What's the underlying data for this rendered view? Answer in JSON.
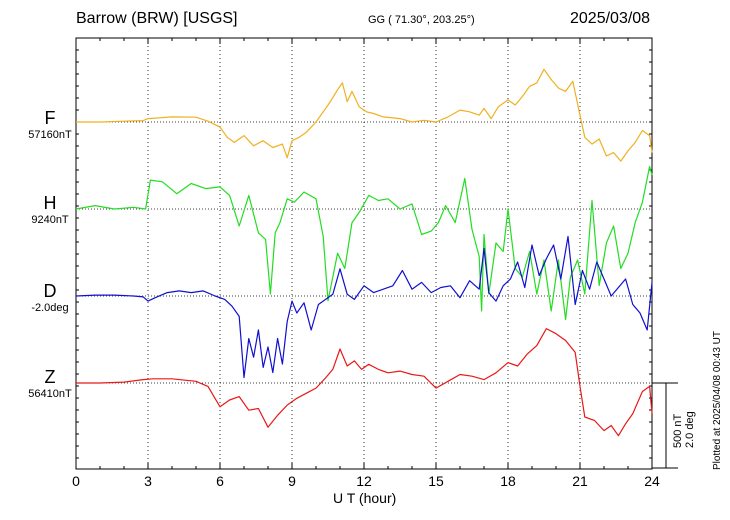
{
  "header": {
    "station": "Barrow (BRW)  [USGS]",
    "coords": "GG ( 71.30°, 203.25°)",
    "date": "2025/03/08"
  },
  "xaxis": {
    "label": "U T (hour)",
    "ticks": [
      "0",
      "3",
      "6",
      "9",
      "12",
      "15",
      "18",
      "21",
      "24"
    ]
  },
  "scale": {
    "nt": "500 nT",
    "deg": "2.0 deg"
  },
  "plotted_note": "Plotted at 2025/04/08 00:43 UT",
  "colors": {
    "F": "#f0b020",
    "H": "#22dd22",
    "D": "#1010d0",
    "Z": "#e81818"
  },
  "components": [
    {
      "letter": "F",
      "baseline": "57160nT"
    },
    {
      "letter": "H",
      "baseline": "9240nT"
    },
    {
      "letter": "D",
      "baseline": "-2.0deg"
    },
    {
      "letter": "Z",
      "baseline": "56410nT"
    }
  ],
  "chart_data": {
    "type": "line",
    "x_unit": "UT hour",
    "xlim": [
      0,
      24
    ],
    "scale_bar": "500 nT / 2.0 deg",
    "series": [
      {
        "name": "F",
        "baseline": "57160nT",
        "x": [
          0,
          1,
          2,
          2.8,
          3,
          3.5,
          4,
          5,
          5.5,
          6,
          6.3,
          6.6,
          7,
          7.4,
          7.8,
          8.2,
          8.6,
          8.8,
          9,
          9.3,
          9.6,
          10,
          10.3,
          10.6,
          10.9,
          11.1,
          11.3,
          11.5,
          11.8,
          12.1,
          12.4,
          12.8,
          13.5,
          14,
          14.5,
          15,
          15.5,
          16,
          16.4,
          16.8,
          17,
          17.3,
          17.6,
          18,
          18.3,
          18.6,
          18.9,
          19.2,
          19.5,
          19.8,
          20.1,
          20.4,
          20.7,
          21,
          21.2,
          21.5,
          21.8,
          22.1,
          22.4,
          22.7,
          23,
          23.3,
          23.6,
          23.9,
          24
        ],
        "values": [
          0,
          0,
          5,
          8,
          20,
          25,
          30,
          28,
          5,
          -30,
          -90,
          -120,
          -80,
          -140,
          -110,
          -150,
          -130,
          -210,
          -110,
          -90,
          -60,
          0,
          60,
          120,
          190,
          230,
          120,
          180,
          90,
          60,
          50,
          30,
          20,
          0,
          10,
          0,
          30,
          70,
          60,
          40,
          80,
          20,
          90,
          130,
          100,
          150,
          210,
          230,
          310,
          250,
          200,
          180,
          240,
          40,
          -90,
          -130,
          -100,
          -200,
          -180,
          -230,
          -170,
          -120,
          -50,
          -80,
          -180
        ]
      },
      {
        "name": "H",
        "baseline": "9240nT",
        "x": [
          0,
          0.8,
          1.6,
          2.4,
          2.9,
          3.1,
          3.6,
          4.2,
          4.8,
          5.4,
          6,
          6.4,
          6.8,
          7.2,
          7.6,
          7.9,
          8.1,
          8.3,
          8.5,
          8.8,
          9.1,
          9.5,
          10,
          10.3,
          10.5,
          10.7,
          10.9,
          11.2,
          11.5,
          11.8,
          12.2,
          12.6,
          13,
          13.5,
          14,
          14.4,
          14.8,
          15.1,
          15.4,
          15.8,
          16.2,
          16.5,
          16.8,
          16.9,
          17,
          17.2,
          17.5,
          17.8,
          18,
          18.3,
          18.6,
          18.9,
          19.2,
          19.5,
          19.8,
          20.1,
          20.4,
          20.6,
          20.9,
          21.2,
          21.5,
          21.8,
          22.1,
          22.4,
          22.7,
          23,
          23.3,
          23.6,
          23.9,
          24
        ],
        "values": [
          0,
          20,
          0,
          10,
          0,
          170,
          160,
          90,
          150,
          120,
          130,
          80,
          -100,
          80,
          -140,
          -180,
          -500,
          -140,
          -80,
          60,
          40,
          100,
          60,
          -160,
          -540,
          -400,
          -260,
          -350,
          -80,
          -20,
          80,
          50,
          60,
          0,
          30,
          -150,
          -130,
          -80,
          20,
          -80,
          180,
          -120,
          -280,
          -600,
          -150,
          -500,
          -200,
          -250,
          0,
          -350,
          -400,
          -250,
          -500,
          -300,
          -600,
          -300,
          -650,
          -400,
          -300,
          -500,
          50,
          -450,
          -200,
          -100,
          -350,
          -260,
          -80,
          40,
          250,
          200
        ]
      },
      {
        "name": "D",
        "baseline": "-2.0deg",
        "x": [
          0,
          0.8,
          1.6,
          2.4,
          2.8,
          3,
          3.3,
          3.8,
          4.3,
          4.8,
          5.3,
          5.8,
          6.2,
          6.5,
          6.8,
          7,
          7.2,
          7.4,
          7.6,
          7.8,
          8,
          8.2,
          8.4,
          8.6,
          8.8,
          9,
          9.2,
          9.5,
          9.8,
          10.1,
          10.4,
          10.7,
          11,
          11.3,
          11.6,
          12,
          12.4,
          12.8,
          13.2,
          13.6,
          14,
          14.4,
          14.8,
          15.2,
          15.6,
          16,
          16.4,
          16.8,
          17,
          17.2,
          17.5,
          17.8,
          18.1,
          18.4,
          18.7,
          19,
          19.3,
          19.6,
          19.9,
          20.2,
          20.5,
          20.8,
          21.1,
          21.4,
          21.7,
          22,
          22.3,
          22.6,
          22.9,
          23.2,
          23.5,
          23.8,
          24
        ],
        "values": [
          0,
          5,
          5,
          0,
          -5,
          -30,
          -10,
          20,
          30,
          20,
          30,
          0,
          -20,
          -60,
          -120,
          -480,
          -250,
          -360,
          -200,
          -420,
          -300,
          -450,
          -250,
          -400,
          -150,
          -30,
          -100,
          -40,
          -200,
          -50,
          -20,
          10,
          160,
          10,
          -20,
          60,
          20,
          40,
          60,
          150,
          40,
          80,
          20,
          50,
          60,
          -10,
          90,
          40,
          280,
          20,
          -30,
          60,
          100,
          200,
          50,
          300,
          120,
          220,
          300,
          100,
          350,
          -50,
          150,
          40,
          200,
          100,
          0,
          50,
          100,
          -50,
          -100,
          -200,
          80
        ]
      },
      {
        "name": "Z",
        "baseline": "56410nT",
        "x": [
          0,
          1,
          2,
          2.8,
          3.2,
          4,
          5,
          5.5,
          6,
          6.4,
          6.8,
          7.2,
          7.6,
          8,
          8.4,
          8.8,
          9.2,
          9.6,
          10,
          10.4,
          10.7,
          11,
          11.3,
          11.6,
          11.9,
          12.2,
          12.6,
          13,
          13.5,
          14,
          14.5,
          15,
          15.5,
          16,
          16.5,
          17,
          17.5,
          18,
          18.4,
          18.8,
          19.2,
          19.6,
          20,
          20.4,
          20.8,
          21,
          21.2,
          21.6,
          22,
          22.3,
          22.6,
          22.9,
          23.2,
          23.6,
          23.9,
          24
        ],
        "values": [
          0,
          0,
          5,
          20,
          25,
          25,
          10,
          -20,
          -140,
          -100,
          -80,
          -160,
          -150,
          -260,
          -190,
          -130,
          -90,
          -60,
          -30,
          30,
          80,
          200,
          100,
          130,
          80,
          110,
          80,
          60,
          70,
          50,
          40,
          -30,
          10,
          50,
          40,
          20,
          60,
          120,
          100,
          170,
          220,
          320,
          290,
          250,
          180,
          -20,
          -200,
          -220,
          -280,
          -250,
          -310,
          -240,
          -180,
          -50,
          -20,
          -180
        ]
      }
    ]
  }
}
